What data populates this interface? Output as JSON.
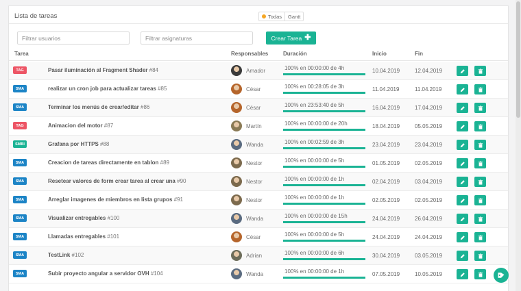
{
  "header": {
    "title": "Lista de tareas",
    "views": [
      "Todas",
      "Gantt"
    ]
  },
  "filters": {
    "users_placeholder": "Filtrar usuarios",
    "assign_placeholder": "Filtrar asignaturas"
  },
  "create_label": "Crear Tarea",
  "columns": {
    "task": "Tarea",
    "owners": "Responsables",
    "duration": "Duración",
    "start": "Inicio",
    "end": "Fin"
  },
  "colors": {
    "accent": "#1ab394",
    "tag_red": "#ed5565",
    "tag_blue": "#1c84c6"
  },
  "rows": [
    {
      "tag": "TAG",
      "tag_color": "#ed5565",
      "name": "Pasar iluminación al Fragment Shader",
      "num": "#84",
      "user": "Amador",
      "avatar": "#3a3a3a",
      "duration": "100% en 00:00:00 de 4h",
      "progress": 1.0,
      "start": "10.04.2019",
      "end": "12.04.2019"
    },
    {
      "tag": "SMA",
      "tag_color": "#1c84c6",
      "name": "realizar un cron job para actualizar tareas",
      "num": "#85",
      "user": "César",
      "avatar": "#b5652b",
      "duration": "100% en 00:28:05 de 3h",
      "progress": 1.0,
      "start": "11.04.2019",
      "end": "11.04.2019"
    },
    {
      "tag": "SMA",
      "tag_color": "#1c84c6",
      "name": "Terminar los menús de crear/editar",
      "num": "#86",
      "user": "César",
      "avatar": "#b5652b",
      "duration": "100% en 23:53:40 de 5h",
      "progress": 1.0,
      "start": "16.04.2019",
      "end": "17.04.2019"
    },
    {
      "tag": "TAG",
      "tag_color": "#ed5565",
      "name": "Animacion del motor",
      "num": "#87",
      "user": "Martín",
      "avatar": "#8a7a55",
      "duration": "100% en 00:00:00 de 20h",
      "progress": 1.0,
      "start": "18.04.2019",
      "end": "05.05.2019"
    },
    {
      "tag": "SMBI",
      "tag_color": "#1ab394",
      "name": "Grafana por HTTPS",
      "num": "#88",
      "user": "Wanda",
      "avatar": "#5a6b80",
      "duration": "100% en 00:02:59 de 3h",
      "progress": 1.0,
      "start": "23.04.2019",
      "end": "23.04.2019"
    },
    {
      "tag": "SMA",
      "tag_color": "#1c84c6",
      "name": "Creacion de tareas directamente en tablon",
      "num": "#89",
      "user": "Nestor",
      "avatar": "#7c6a4d",
      "duration": "100% en 00:00:00 de 5h",
      "progress": 1.0,
      "start": "01.05.2019",
      "end": "02.05.2019"
    },
    {
      "tag": "SMA",
      "tag_color": "#1c84c6",
      "name": "Resetear valores de form crear tarea al crear una",
      "num": "#90",
      "user": "Nestor",
      "avatar": "#7c6a4d",
      "duration": "100% en 00:00:00 de 1h",
      "progress": 1.0,
      "start": "02.04.2019",
      "end": "03.04.2019"
    },
    {
      "tag": "SMA",
      "tag_color": "#1c84c6",
      "name": "Arreglar imagenes de miembros en lista grupos",
      "num": "#91",
      "user": "Nestor",
      "avatar": "#7c6a4d",
      "duration": "100% en 00:00:00 de 1h",
      "progress": 1.0,
      "start": "02.05.2019",
      "end": "02.05.2019"
    },
    {
      "tag": "SMA",
      "tag_color": "#1c84c6",
      "name": "Visualizar entregables",
      "num": "#100",
      "user": "Wanda",
      "avatar": "#5a6b80",
      "duration": "100% en 00:00:00 de 15h",
      "progress": 1.0,
      "start": "24.04.2019",
      "end": "26.04.2019"
    },
    {
      "tag": "SMA",
      "tag_color": "#1c84c6",
      "name": "Llamadas entregables",
      "num": "#101",
      "user": "César",
      "avatar": "#b5652b",
      "duration": "100% en 00:00:00 de 5h",
      "progress": 1.0,
      "start": "24.04.2019",
      "end": "24.04.2019"
    },
    {
      "tag": "SMA",
      "tag_color": "#1c84c6",
      "name": "TestLink",
      "num": "#102",
      "user": "Adrian",
      "avatar": "#6d6d5a",
      "duration": "100% en 00:00:00 de 6h",
      "progress": 1.0,
      "start": "30.04.2019",
      "end": "03.05.2019"
    },
    {
      "tag": "SMA",
      "tag_color": "#1c84c6",
      "name": "Subir proyecto angular a servidor OVH",
      "num": "#104",
      "user": "Wanda",
      "avatar": "#5a6b80",
      "duration": "100% en 00:00:00 de 1h",
      "progress": 1.0,
      "start": "07.05.2019",
      "end": "10.05.2019"
    }
  ]
}
